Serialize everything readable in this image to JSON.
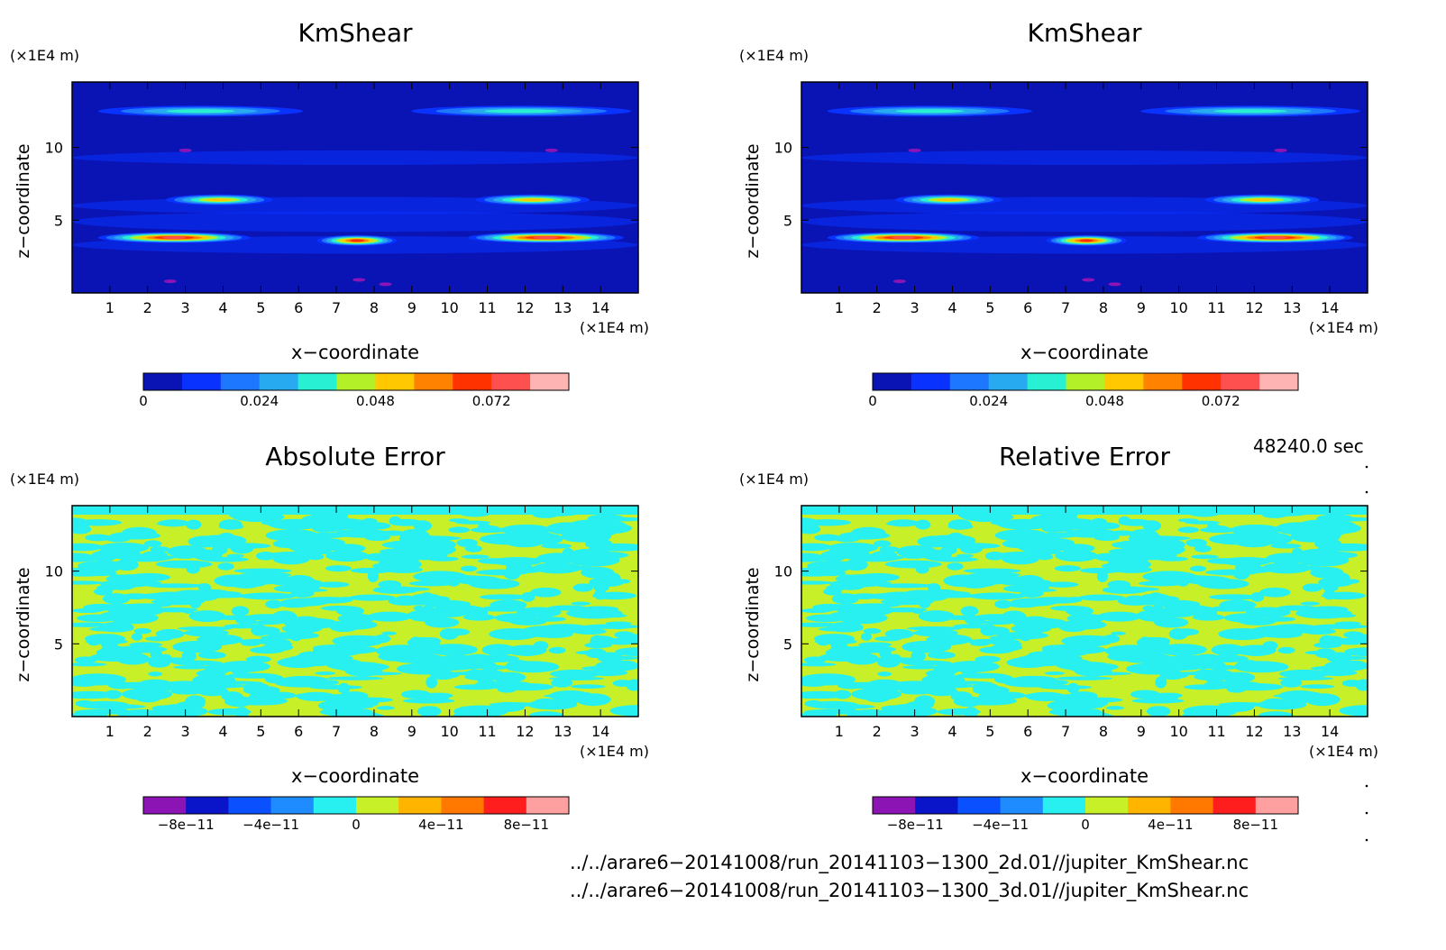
{
  "panels": [
    {
      "title": "KmShear",
      "kind": "field",
      "xlabel": "x−coordinate",
      "ylabel": "z−coordinate",
      "x_unit": "(×1E4 m)",
      "z_unit": "(×1E4 m)",
      "colorbar": {
        "colors": [
          "#0a14b4",
          "#0a32ff",
          "#1e78ff",
          "#28aaf0",
          "#28f0d2",
          "#b4f028",
          "#ffc800",
          "#ff8200",
          "#ff3200",
          "#ff5050",
          "#ffb4b4"
        ],
        "labels": [
          "0",
          "0.024",
          "0.048",
          "0.072"
        ]
      }
    },
    {
      "title": "KmShear",
      "kind": "field",
      "xlabel": "x−coordinate",
      "ylabel": "z−coordinate",
      "x_unit": "(×1E4 m)",
      "z_unit": "(×1E4 m)",
      "colorbar": {
        "colors": [
          "#0a14b4",
          "#0a32ff",
          "#1e78ff",
          "#28aaf0",
          "#28f0d2",
          "#b4f028",
          "#ffc800",
          "#ff8200",
          "#ff3200",
          "#ff5050",
          "#ffb4b4"
        ],
        "labels": [
          "0",
          "0.024",
          "0.048",
          "0.072"
        ]
      }
    },
    {
      "title": "Absolute Error",
      "kind": "error",
      "xlabel": "x−coordinate",
      "ylabel": "z−coordinate",
      "x_unit": "(×1E4 m)",
      "z_unit": "(×1E4 m)",
      "colorbar": {
        "colors": [
          "#8c14b4",
          "#0a14c8",
          "#0a50ff",
          "#1e8cff",
          "#28f0f0",
          "#c8f028",
          "#ffb400",
          "#ff7800",
          "#ff1e1e",
          "#ffa0a0"
        ],
        "labels": [
          "−8e−11",
          "−4e−11",
          "0",
          "4e−11",
          "8e−11"
        ]
      }
    },
    {
      "title": "Relative Error",
      "kind": "error",
      "xlabel": "x−coordinate",
      "ylabel": "z−coordinate",
      "x_unit": "(×1E4 m)",
      "z_unit": "(×1E4 m)",
      "colorbar": {
        "colors": [
          "#8c14b4",
          "#0a14c8",
          "#0a50ff",
          "#1e8cff",
          "#28f0f0",
          "#c8f028",
          "#ffb400",
          "#ff7800",
          "#ff1e1e",
          "#ffa0a0"
        ],
        "labels": [
          "−8e−11",
          "−4e−11",
          "0",
          "4e−11",
          "8e−11"
        ]
      }
    }
  ],
  "axes": {
    "x_ticks": [
      1,
      2,
      3,
      4,
      5,
      6,
      7,
      8,
      9,
      10,
      11,
      12,
      13,
      14
    ],
    "z_ticks": [
      5,
      10
    ],
    "xlim": [
      0,
      15
    ],
    "zlim": [
      0,
      14.5
    ]
  },
  "time_label": "48240.0 sec",
  "file_paths": [
    "../../arare6−20141008/run_20141103−1300_2d.01//jupiter_KmShear.nc",
    "../../arare6−20141008/run_20141103−1300_3d.01//jupiter_KmShear.nc"
  ],
  "chart_data": [
    {
      "type": "heatmap",
      "title": "KmShear",
      "xlabel": "x−coordinate",
      "ylabel": "z−coordinate",
      "xlim": [
        0,
        15
      ],
      "ylim": [
        0,
        14.5
      ],
      "legend_levels": [
        "0",
        "0.024",
        "0.048",
        "0.072"
      ],
      "features": [
        {
          "x": [
            1.5,
            5.3
          ],
          "z": 12.5,
          "value": 0.03
        },
        {
          "x": [
            9.8,
            14.0
          ],
          "z": 12.5,
          "value": 0.03
        },
        {
          "x": [
            3.3,
            4.5
          ],
          "z": 6.4,
          "value": 0.05
        },
        {
          "x": [
            11.5,
            12.9
          ],
          "z": 6.4,
          "value": 0.05
        },
        {
          "x": [
            1.5,
            3.9
          ],
          "z": 3.8,
          "value": 0.075
        },
        {
          "x": [
            7.3,
            7.8
          ],
          "z": 3.6,
          "value": 0.06
        },
        {
          "x": [
            11.3,
            13.8
          ],
          "z": 3.8,
          "value": 0.07
        }
      ]
    },
    {
      "type": "heatmap",
      "title": "KmShear",
      "xlabel": "x−coordinate",
      "ylabel": "z−coordinate",
      "xlim": [
        0,
        15
      ],
      "ylim": [
        0,
        14.5
      ],
      "legend_levels": [
        "0",
        "0.024",
        "0.048",
        "0.072"
      ],
      "features": [
        {
          "x": [
            1.5,
            5.3
          ],
          "z": 12.5,
          "value": 0.03
        },
        {
          "x": [
            9.8,
            14.0
          ],
          "z": 12.5,
          "value": 0.03
        },
        {
          "x": [
            3.3,
            4.5
          ],
          "z": 6.4,
          "value": 0.05
        },
        {
          "x": [
            11.5,
            12.9
          ],
          "z": 6.4,
          "value": 0.05
        },
        {
          "x": [
            1.5,
            3.9
          ],
          "z": 3.8,
          "value": 0.075
        },
        {
          "x": [
            7.3,
            7.8
          ],
          "z": 3.6,
          "value": 0.06
        },
        {
          "x": [
            11.3,
            13.8
          ],
          "z": 3.8,
          "value": 0.07
        }
      ]
    },
    {
      "type": "heatmap",
      "title": "Absolute Error",
      "xlabel": "x−coordinate",
      "ylabel": "z−coordinate",
      "xlim": [
        0,
        15
      ],
      "ylim": [
        0,
        14.5
      ],
      "legend_levels": [
        "−8e−11",
        "−4e−11",
        "0",
        "4e−11",
        "8e−11"
      ],
      "values_range": [
        -4e-11,
        4e-11
      ]
    },
    {
      "type": "heatmap",
      "title": "Relative Error",
      "xlabel": "x−coordinate",
      "ylabel": "z−coordinate",
      "xlim": [
        0,
        15
      ],
      "ylim": [
        0,
        14.5
      ],
      "legend_levels": [
        "−8e−11",
        "−4e−11",
        "0",
        "4e−11",
        "8e−11"
      ],
      "values_range": [
        -4e-11,
        4e-11
      ]
    }
  ]
}
